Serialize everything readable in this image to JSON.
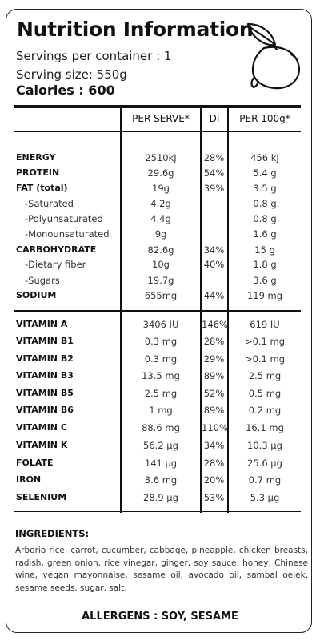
{
  "header": {
    "title": "Nutrition Information",
    "servings": "Servings per container : 1",
    "serving_size": "Serving size: 550g",
    "calories": "Calories : 600"
  },
  "columns": {
    "per_serve": "PER SERVE*",
    "di": "DI",
    "per_100g": "PER 100g*"
  },
  "macros": [
    {
      "name": "ENERGY",
      "bold": true,
      "per_serve": "2510kJ",
      "di": "28%",
      "per_100g": "456 kJ"
    },
    {
      "name": "PROTEIN",
      "bold": true,
      "per_serve": "29.6g",
      "di": "54%",
      "per_100g": "5.4 g"
    },
    {
      "name": "FAT (total)",
      "bold": true,
      "per_serve": "19g",
      "di": "39%",
      "per_100g": "3.5 g"
    },
    {
      "name": "-Saturated",
      "bold": false,
      "per_serve": "4.2g",
      "di": "",
      "per_100g": "0.8 g"
    },
    {
      "name": "-Polyunsaturated",
      "bold": false,
      "per_serve": "4.4g",
      "di": "",
      "per_100g": "0.8 g"
    },
    {
      "name": "-Monounsaturated",
      "bold": false,
      "per_serve": "9g",
      "di": "",
      "per_100g": "1.6 g"
    },
    {
      "name": "CARBOHYDRATE",
      "bold": true,
      "per_serve": "82.6g",
      "di": "34%",
      "per_100g": "15 g"
    },
    {
      "name": "-Dietary fiber",
      "bold": false,
      "per_serve": "10g",
      "di": "40%",
      "per_100g": "1.8 g"
    },
    {
      "name": "-Sugars",
      "bold": false,
      "per_serve": "19.7g",
      "di": "",
      "per_100g": "3.6 g"
    },
    {
      "name": "SODIUM",
      "bold": true,
      "per_serve": "655mg",
      "di": "44%",
      "per_100g": "119 mg"
    }
  ],
  "vitamins": [
    {
      "name": "VITAMIN A",
      "per_serve": "3406 IU",
      "di": "146%",
      "per_100g": "619 IU"
    },
    {
      "name": "VITAMIN B1",
      "per_serve": "0.3 mg",
      "di": "28%",
      "per_100g": ">0.1 mg"
    },
    {
      "name": "VITAMIN B2",
      "per_serve": "0.3 mg",
      "di": "29%",
      "per_100g": ">0.1 mg"
    },
    {
      "name": "VITAMIN B3",
      "per_serve": "13.5 mg",
      "di": "89%",
      "per_100g": "2.5 mg"
    },
    {
      "name": "VITAMIN B5",
      "per_serve": "2.5 mg",
      "di": "52%",
      "per_100g": "0.5 mg"
    },
    {
      "name": "VITAMIN B6",
      "per_serve": "1 mg",
      "di": "89%",
      "per_100g": "0.2 mg"
    },
    {
      "name": "VITAMIN C",
      "per_serve": "88.6 mg",
      "di": "110%",
      "per_100g": "16.1 mg"
    },
    {
      "name": "VITAMIN K",
      "per_serve": "56.2 µg",
      "di": "34%",
      "per_100g": "10.3 µg"
    },
    {
      "name": "FOLATE",
      "per_serve": "141 µg",
      "di": "28%",
      "per_100g": "25.6 µg"
    },
    {
      "name": "IRON",
      "per_serve": "3.6 mg",
      "di": "20%",
      "per_100g": "0.7 mg"
    },
    {
      "name": "SELENIUM",
      "per_serve": "28.9 µg",
      "di": "53%",
      "per_100g": "5.3 µg"
    }
  ],
  "ingredients": {
    "heading": "INGREDIENTS:",
    "text": "Arborio rice, carrot, cucumber, cabbage, pineapple, chicken breasts, radish, green onion, rice vinegar, ginger, soy sauce, honey, Chinese wine, vegan mayonnaise, sesame oil, avocado oil, sambal oelek, sesame seeds, sugar, salt."
  },
  "allergens": "ALLERGENS : SOY, SESAME",
  "icons": {
    "logo": "lemon-icon"
  }
}
